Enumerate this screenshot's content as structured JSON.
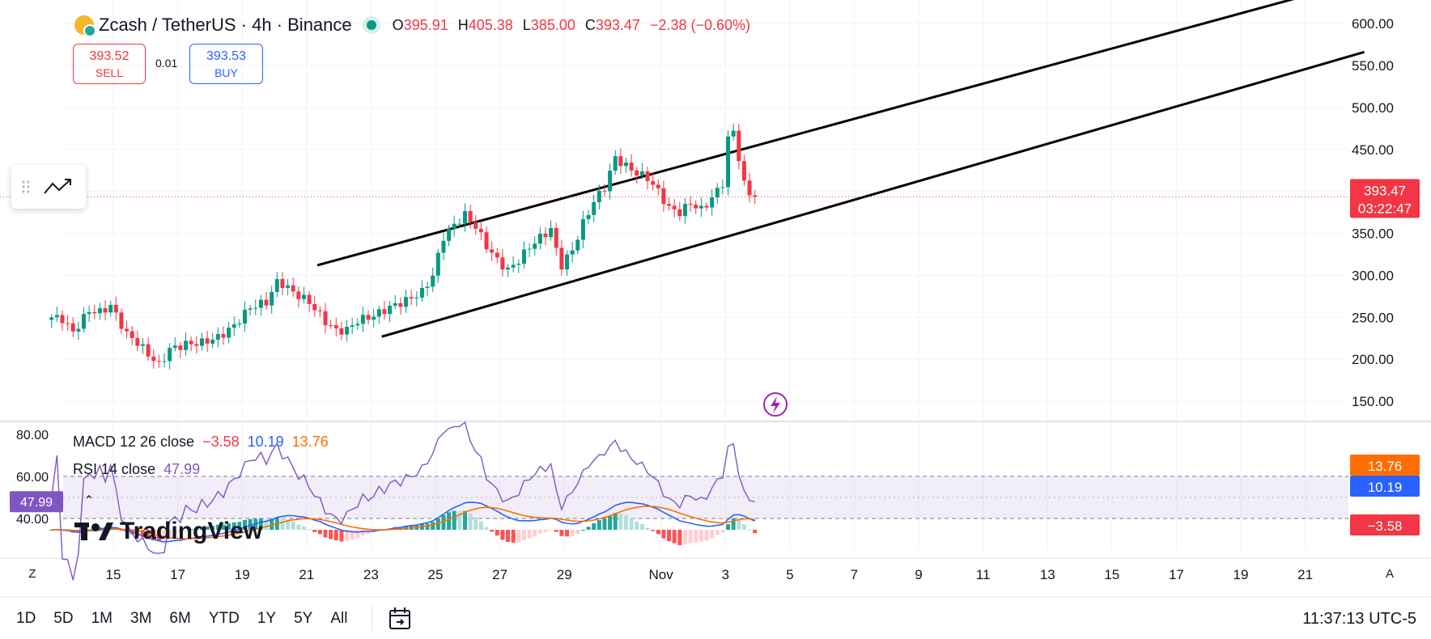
{
  "header": {
    "symbol_title": "Zcash / TetherUS · 4h · Binance",
    "ohlc": [
      {
        "k": "O",
        "v": "395.91"
      },
      {
        "k": "H",
        "v": "405.38"
      },
      {
        "k": "L",
        "v": "385.00"
      },
      {
        "k": "C",
        "v": "393.47"
      },
      {
        "k": "",
        "v": "−2.38 (−0.60%)"
      }
    ]
  },
  "trade": {
    "sell_price": "393.52",
    "sell_label": "SELL",
    "spread": "0.01",
    "buy_price": "393.53",
    "buy_label": "BUY"
  },
  "indicators": {
    "macd": {
      "name": "MACD 12 26 close",
      "v1": "−3.58",
      "v2": "10.19",
      "v3": "13.76"
    },
    "rsi": {
      "name": "RSI 14 close",
      "value": "47.99"
    }
  },
  "logo": "TradingView",
  "bottom": {
    "timeframes": [
      "1D",
      "5D",
      "1M",
      "3M",
      "6M",
      "YTD",
      "1Y",
      "5Y",
      "All"
    ],
    "clock": "11:37:13 UTC-5",
    "left_toggle": "Z",
    "right_toggle": "A"
  },
  "colors": {
    "up": "#089981",
    "down": "#f23645",
    "macd": "#2962ff",
    "signal": "#ff6d00",
    "rsi": "#7e57c2",
    "text": "#131722",
    "grid": "#f0f3fa"
  },
  "chart_data": [
    {
      "type": "candlestick",
      "title": "Zcash / TetherUS · 4h · Binance",
      "x_tick_labels": [
        "15",
        "17",
        "19",
        "21",
        "23",
        "25",
        "27",
        "29",
        "Nov",
        "3",
        "5",
        "7",
        "9",
        "11",
        "13",
        "15",
        "17",
        "19",
        "21"
      ],
      "y_tick_labels": [
        "600.00",
        "550.00",
        "500.00",
        "450.00",
        "400.00",
        "350.00",
        "300.00",
        "250.00",
        "200.00",
        "150.00"
      ],
      "ylim": [
        127,
        628
      ],
      "x_range_days": [
        13.25,
        22.75
      ],
      "x_axis_start": "Oct 13",
      "last_price": {
        "value": 393.47,
        "label": "393.47",
        "countdown": "03:22:47"
      },
      "waypoints": [
        [
          0,
          250
        ],
        [
          2,
          248
        ],
        [
          4,
          232
        ],
        [
          7,
          258
        ],
        [
          9,
          256
        ],
        [
          11,
          264
        ],
        [
          14,
          230
        ],
        [
          16,
          220
        ],
        [
          18,
          206
        ],
        [
          20,
          193
        ],
        [
          22,
          212
        ],
        [
          25,
          218
        ],
        [
          28,
          220
        ],
        [
          31,
          226
        ],
        [
          34,
          240
        ],
        [
          37,
          262
        ],
        [
          40,
          268
        ],
        [
          42,
          292
        ],
        [
          43,
          290
        ],
        [
          45,
          280
        ],
        [
          48,
          268
        ],
        [
          51,
          245
        ],
        [
          53,
          234
        ],
        [
          55,
          235
        ],
        [
          57,
          246
        ],
        [
          60,
          252
        ],
        [
          63,
          262
        ],
        [
          66,
          270
        ],
        [
          69,
          280
        ],
        [
          71,
          300
        ],
        [
          73,
          346
        ],
        [
          75,
          360
        ],
        [
          77,
          372
        ],
        [
          79,
          358
        ],
        [
          81,
          335
        ],
        [
          83,
          318
        ],
        [
          85,
          306
        ],
        [
          87,
          318
        ],
        [
          89,
          334
        ],
        [
          91,
          345
        ],
        [
          93,
          355
        ],
        [
          94,
          330
        ],
        [
          95,
          312
        ],
        [
          97,
          330
        ],
        [
          99,
          362
        ],
        [
          101,
          388
        ],
        [
          103,
          405
        ],
        [
          105,
          440
        ],
        [
          107,
          430
        ],
        [
          109,
          422
        ],
        [
          111,
          416
        ],
        [
          113,
          400
        ],
        [
          115,
          380
        ],
        [
          117,
          375
        ],
        [
          119,
          386
        ],
        [
          121,
          378
        ],
        [
          123,
          392
        ],
        [
          125,
          410
        ],
        [
          126,
          462
        ],
        [
          127,
          472
        ],
        [
          128,
          440
        ],
        [
          129,
          408
        ],
        [
          130,
          398
        ],
        [
          131,
          393.47
        ]
      ],
      "trend_channel": {
        "upper": [
          {
            "t": "Oct 21 08:00",
            "v": 312
          },
          {
            "t": "Nov 21 16:00",
            "v": 640
          }
        ],
        "lower": [
          {
            "t": "Oct 23 08:00",
            "v": 227
          },
          {
            "t": "Nov 22 20:00",
            "v": 566
          }
        ]
      }
    },
    {
      "type": "line",
      "title": "MACD 12 26 close",
      "series": [
        {
          "name": "MACD",
          "values": [
            10.19
          ]
        },
        {
          "name": "Signal",
          "values": [
            13.76
          ]
        },
        {
          "name": "Histogram",
          "values": [
            -3.58
          ]
        }
      ]
    },
    {
      "type": "line",
      "title": "RSI 14 close",
      "y_tick_labels": [
        "80.00",
        "60.00",
        "40.00"
      ],
      "ylim": [
        25,
        85
      ],
      "bands": [
        40,
        60
      ],
      "series": [
        {
          "name": "RSI",
          "values": [
            47.99
          ]
        }
      ]
    }
  ]
}
